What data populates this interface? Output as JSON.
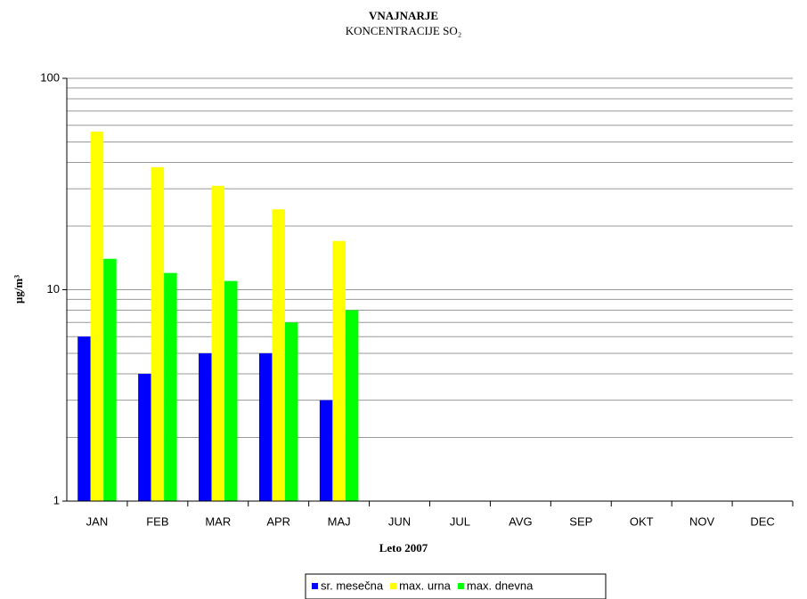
{
  "chart_data": {
    "type": "bar",
    "title": "VNAJNARJE",
    "subtitle": "KONCENTRACIJE SO₂",
    "x_label": "Leto 2007",
    "y_label": "µg/m³",
    "categories": [
      "JAN",
      "FEB",
      "MAR",
      "APR",
      "MAJ",
      "JUN",
      "JUL",
      "AVG",
      "SEP",
      "OKT",
      "NOV",
      "DEC"
    ],
    "series": [
      {
        "name": "sr. mesečna",
        "color": "#0000ff",
        "values": [
          6,
          4,
          5,
          5,
          3,
          null,
          null,
          null,
          null,
          null,
          null,
          null
        ]
      },
      {
        "name": "max. urna",
        "color": "#ffff00",
        "values": [
          56,
          38,
          31,
          24,
          17,
          null,
          null,
          null,
          null,
          null,
          null,
          null
        ]
      },
      {
        "name": "max. dnevna",
        "color": "#00ff00",
        "values": [
          14,
          12,
          11,
          7,
          8,
          null,
          null,
          null,
          null,
          null,
          null,
          null
        ]
      }
    ],
    "ylim": [
      1,
      100
    ],
    "yticks": [
      1,
      10,
      100
    ],
    "minor_yticks": [
      2,
      3,
      4,
      5,
      6,
      7,
      8,
      9,
      20,
      30,
      40,
      50,
      60,
      70,
      80,
      90
    ],
    "log_scale": true,
    "grid": true,
    "legend": "bottom"
  }
}
